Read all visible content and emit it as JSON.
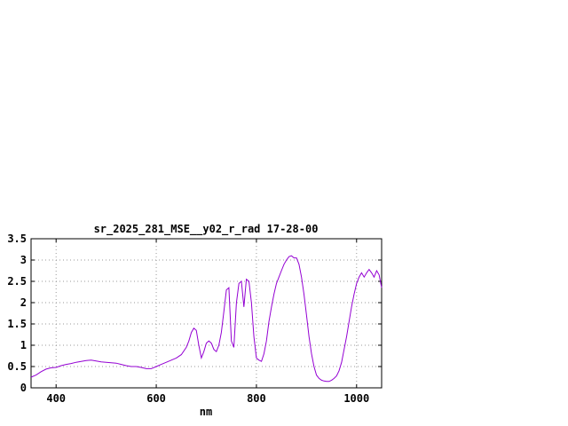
{
  "chart_data": {
    "type": "line",
    "title": "sr_2025_281_MSE__y02_r_rad 17-28-00",
    "xlabel": "nm",
    "ylabel": "",
    "xlim": [
      350,
      1050
    ],
    "ylim": [
      0,
      3.5
    ],
    "xticks": [
      400,
      600,
      800,
      1000
    ],
    "xtick_labels": [
      "400",
      "600",
      "800",
      "1000"
    ],
    "yticks": [
      0,
      0.5,
      1,
      1.5,
      2,
      2.5,
      3,
      3.5
    ],
    "ytick_labels": [
      "0",
      "0.5",
      "1",
      "1.5",
      "2",
      "2.5",
      "3",
      "3.5"
    ],
    "grid": true,
    "legend": "none",
    "line_color": "#9400d3",
    "points": [
      [
        350,
        0.25
      ],
      [
        360,
        0.3
      ],
      [
        370,
        0.38
      ],
      [
        380,
        0.44
      ],
      [
        390,
        0.47
      ],
      [
        400,
        0.48
      ],
      [
        410,
        0.52
      ],
      [
        420,
        0.55
      ],
      [
        430,
        0.57
      ],
      [
        440,
        0.6
      ],
      [
        450,
        0.62
      ],
      [
        460,
        0.64
      ],
      [
        470,
        0.65
      ],
      [
        480,
        0.63
      ],
      [
        490,
        0.61
      ],
      [
        500,
        0.6
      ],
      [
        510,
        0.59
      ],
      [
        520,
        0.58
      ],
      [
        530,
        0.55
      ],
      [
        540,
        0.52
      ],
      [
        550,
        0.5
      ],
      [
        560,
        0.5
      ],
      [
        570,
        0.48
      ],
      [
        580,
        0.45
      ],
      [
        590,
        0.45
      ],
      [
        600,
        0.5
      ],
      [
        610,
        0.55
      ],
      [
        620,
        0.6
      ],
      [
        630,
        0.65
      ],
      [
        640,
        0.7
      ],
      [
        650,
        0.78
      ],
      [
        660,
        0.95
      ],
      [
        665,
        1.1
      ],
      [
        670,
        1.3
      ],
      [
        675,
        1.4
      ],
      [
        680,
        1.35
      ],
      [
        685,
        1.0
      ],
      [
        690,
        0.7
      ],
      [
        695,
        0.85
      ],
      [
        700,
        1.05
      ],
      [
        705,
        1.1
      ],
      [
        710,
        1.05
      ],
      [
        715,
        0.9
      ],
      [
        720,
        0.85
      ],
      [
        725,
        1.0
      ],
      [
        730,
        1.3
      ],
      [
        735,
        1.8
      ],
      [
        740,
        2.3
      ],
      [
        745,
        2.35
      ],
      [
        750,
        1.1
      ],
      [
        755,
        0.95
      ],
      [
        760,
        2.0
      ],
      [
        765,
        2.45
      ],
      [
        770,
        2.5
      ],
      [
        775,
        1.9
      ],
      [
        780,
        2.55
      ],
      [
        785,
        2.5
      ],
      [
        790,
        2.0
      ],
      [
        795,
        1.2
      ],
      [
        800,
        0.7
      ],
      [
        805,
        0.65
      ],
      [
        810,
        0.62
      ],
      [
        815,
        0.8
      ],
      [
        820,
        1.1
      ],
      [
        825,
        1.55
      ],
      [
        830,
        1.9
      ],
      [
        835,
        2.2
      ],
      [
        840,
        2.45
      ],
      [
        845,
        2.6
      ],
      [
        850,
        2.75
      ],
      [
        855,
        2.9
      ],
      [
        860,
        3.0
      ],
      [
        865,
        3.08
      ],
      [
        870,
        3.1
      ],
      [
        875,
        3.05
      ],
      [
        880,
        3.05
      ],
      [
        885,
        2.9
      ],
      [
        890,
        2.6
      ],
      [
        895,
        2.2
      ],
      [
        900,
        1.7
      ],
      [
        905,
        1.2
      ],
      [
        910,
        0.8
      ],
      [
        915,
        0.5
      ],
      [
        920,
        0.3
      ],
      [
        925,
        0.22
      ],
      [
        930,
        0.18
      ],
      [
        935,
        0.16
      ],
      [
        940,
        0.15
      ],
      [
        945,
        0.15
      ],
      [
        950,
        0.18
      ],
      [
        955,
        0.22
      ],
      [
        960,
        0.28
      ],
      [
        965,
        0.4
      ],
      [
        970,
        0.6
      ],
      [
        975,
        0.9
      ],
      [
        980,
        1.2
      ],
      [
        985,
        1.55
      ],
      [
        990,
        1.9
      ],
      [
        995,
        2.2
      ],
      [
        1000,
        2.45
      ],
      [
        1005,
        2.6
      ],
      [
        1010,
        2.7
      ],
      [
        1015,
        2.6
      ],
      [
        1020,
        2.7
      ],
      [
        1025,
        2.78
      ],
      [
        1030,
        2.7
      ],
      [
        1035,
        2.6
      ],
      [
        1040,
        2.75
      ],
      [
        1045,
        2.65
      ],
      [
        1050,
        2.35
      ]
    ]
  }
}
